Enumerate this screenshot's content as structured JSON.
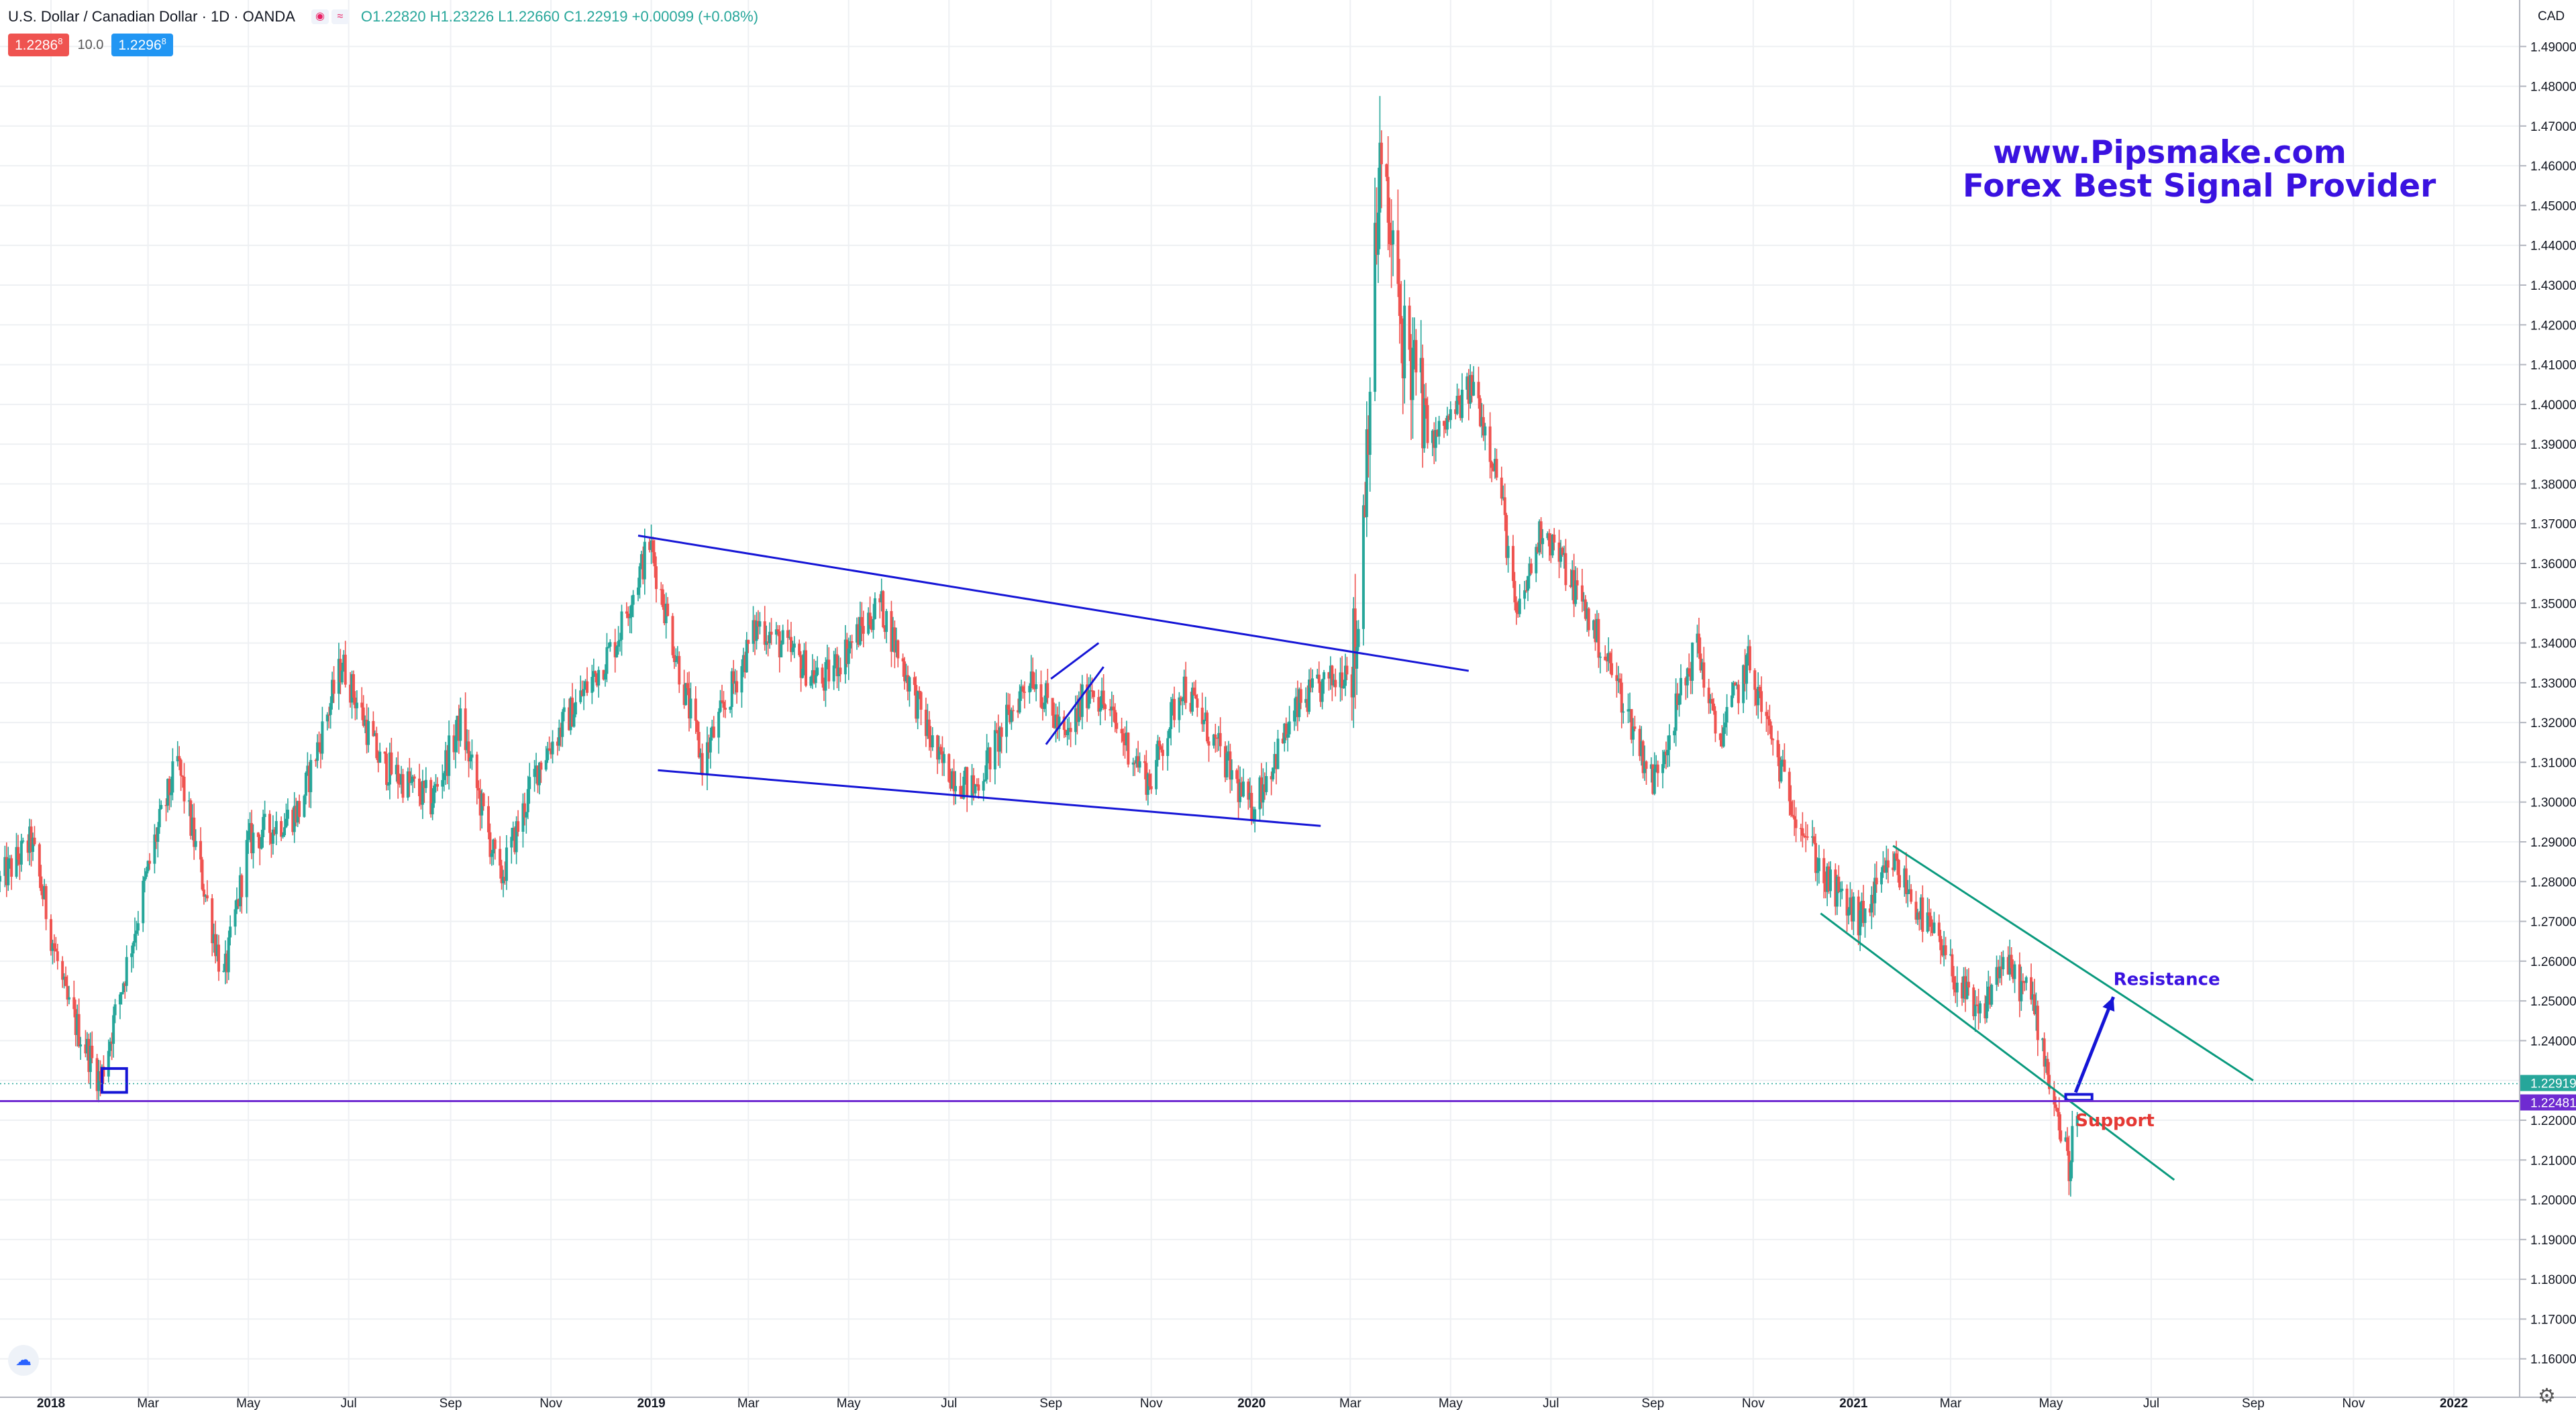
{
  "header": {
    "symbol": "U.S. Dollar / Canadian Dollar · 1D · OANDA",
    "open": "O1.22820",
    "high": "H1.23226",
    "low": "L1.22660",
    "close": "C1.22919",
    "change": "+0.00099 (+0.08%)",
    "icons": [
      "eye-icon",
      "compare-icon"
    ]
  },
  "quote": {
    "sell": "1.2286",
    "sell_sup": "8",
    "spread": "10.0",
    "buy": "1.2296",
    "buy_sup": "8"
  },
  "branding": {
    "line1": "www.Pipsmake.com",
    "line2": "Forex Best Signal Provider"
  },
  "colors": {
    "up": "#26a69a",
    "down": "#ef5350",
    "trendline": "#1515d6",
    "channel": "#0a9a7e",
    "support_line": "#6f2bd1",
    "annotation_resistance": "#3a12e0",
    "annotation_support": "#e53935"
  },
  "chart_data": {
    "type": "candlestick",
    "instrument": "USDCAD",
    "timeframe": "1D",
    "currency_label": "CAD",
    "x_range": [
      "2017-12-01",
      "2022-02-10"
    ],
    "ylim": [
      1.15,
      1.5
    ],
    "y_ticks": [
      "1.16000",
      "1.17000",
      "1.18000",
      "1.19000",
      "1.20000",
      "1.21000",
      "1.22000",
      "1.23000",
      "1.24000",
      "1.25000",
      "1.26000",
      "1.27000",
      "1.28000",
      "1.29000",
      "1.30000",
      "1.31000",
      "1.32000",
      "1.33000",
      "1.34000",
      "1.35000",
      "1.36000",
      "1.37000",
      "1.38000",
      "1.39000",
      "1.40000",
      "1.41000",
      "1.42000",
      "1.43000",
      "1.44000",
      "1.45000",
      "1.46000",
      "1.47000",
      "1.48000",
      "1.49000"
    ],
    "x_ticks": [
      {
        "date": "2018-01-01",
        "label": "2018",
        "bold": true
      },
      {
        "date": "2018-03-01",
        "label": "Mar"
      },
      {
        "date": "2018-05-01",
        "label": "May"
      },
      {
        "date": "2018-07-01",
        "label": "Jul"
      },
      {
        "date": "2018-09-01",
        "label": "Sep"
      },
      {
        "date": "2018-11-01",
        "label": "Nov"
      },
      {
        "date": "2019-01-01",
        "label": "2019",
        "bold": true
      },
      {
        "date": "2019-03-01",
        "label": "Mar"
      },
      {
        "date": "2019-05-01",
        "label": "May"
      },
      {
        "date": "2019-07-01",
        "label": "Jul"
      },
      {
        "date": "2019-09-01",
        "label": "Sep"
      },
      {
        "date": "2019-11-01",
        "label": "Nov"
      },
      {
        "date": "2020-01-01",
        "label": "2020",
        "bold": true
      },
      {
        "date": "2020-03-01",
        "label": "Mar"
      },
      {
        "date": "2020-05-01",
        "label": "May"
      },
      {
        "date": "2020-07-01",
        "label": "Jul"
      },
      {
        "date": "2020-09-01",
        "label": "Sep"
      },
      {
        "date": "2020-11-01",
        "label": "Nov"
      },
      {
        "date": "2021-01-01",
        "label": "2021",
        "bold": true
      },
      {
        "date": "2021-03-01",
        "label": "Mar"
      },
      {
        "date": "2021-05-01",
        "label": "May"
      },
      {
        "date": "2021-07-01",
        "label": "Jul"
      },
      {
        "date": "2021-09-01",
        "label": "Sep"
      },
      {
        "date": "2021-11-01",
        "label": "Nov"
      },
      {
        "date": "2022-01-01",
        "label": "2022",
        "bold": true
      }
    ],
    "price_path": [
      [
        "2017-12-01",
        1.28
      ],
      [
        "2017-12-20",
        1.29
      ],
      [
        "2018-01-10",
        1.25
      ],
      [
        "2018-01-31",
        1.23
      ],
      [
        "2018-03-05",
        1.29
      ],
      [
        "2018-03-19",
        1.31
      ],
      [
        "2018-04-16",
        1.255
      ],
      [
        "2018-05-01",
        1.29
      ],
      [
        "2018-06-01",
        1.298
      ],
      [
        "2018-06-27",
        1.335
      ],
      [
        "2018-07-20",
        1.31
      ],
      [
        "2018-08-20",
        1.3
      ],
      [
        "2018-09-07",
        1.32
      ],
      [
        "2018-10-01",
        1.28
      ],
      [
        "2018-10-25",
        1.31
      ],
      [
        "2018-12-10",
        1.34
      ],
      [
        "2018-12-31",
        1.365
      ],
      [
        "2019-01-20",
        1.33
      ],
      [
        "2019-02-01",
        1.31
      ],
      [
        "2019-03-07",
        1.345
      ],
      [
        "2019-04-15",
        1.33
      ],
      [
        "2019-05-20",
        1.35
      ],
      [
        "2019-06-25",
        1.31
      ],
      [
        "2019-07-16",
        1.303
      ],
      [
        "2019-08-20",
        1.333
      ],
      [
        "2019-09-10",
        1.315
      ],
      [
        "2019-09-25",
        1.33
      ],
      [
        "2019-10-31",
        1.305
      ],
      [
        "2019-11-20",
        1.33
      ],
      [
        "2019-12-31",
        1.298
      ],
      [
        "2020-01-31",
        1.325
      ],
      [
        "2020-02-24",
        1.332
      ],
      [
        "2020-03-05",
        1.34
      ],
      [
        "2020-03-19",
        1.46
      ],
      [
        "2020-04-01",
        1.42
      ],
      [
        "2020-04-20",
        1.39
      ],
      [
        "2020-05-15",
        1.405
      ],
      [
        "2020-05-31",
        1.38
      ],
      [
        "2020-06-10",
        1.345
      ],
      [
        "2020-06-26",
        1.37
      ],
      [
        "2020-07-20",
        1.35
      ],
      [
        "2020-08-10",
        1.33
      ],
      [
        "2020-09-01",
        1.305
      ],
      [
        "2020-09-28",
        1.34
      ],
      [
        "2020-10-10",
        1.315
      ],
      [
        "2020-10-29",
        1.335
      ],
      [
        "2020-11-20",
        1.305
      ],
      [
        "2020-12-15",
        1.28
      ],
      [
        "2021-01-05",
        1.27
      ],
      [
        "2021-01-25",
        1.285
      ],
      [
        "2021-02-20",
        1.265
      ],
      [
        "2021-03-18",
        1.245
      ],
      [
        "2021-04-01",
        1.26
      ],
      [
        "2021-04-20",
        1.25
      ],
      [
        "2021-05-12",
        1.208
      ],
      [
        "2021-05-18",
        1.2292
      ]
    ],
    "last_price": "1.22919",
    "support_level": "1.22481",
    "annotations": {
      "resistance_label": "Resistance",
      "support_label": "Support"
    },
    "drawings": [
      {
        "kind": "trendline",
        "from": [
          "2018-12-24",
          1.367
        ],
        "to": [
          "2020-05-12",
          1.333
        ]
      },
      {
        "kind": "trendline",
        "from": [
          "2019-01-05",
          1.308
        ],
        "to": [
          "2020-02-12",
          1.294
        ]
      },
      {
        "kind": "trendline",
        "from": [
          "2019-09-01",
          1.331
        ],
        "to": [
          "2019-09-30",
          1.34
        ]
      },
      {
        "kind": "trendline",
        "from": [
          "2019-08-29",
          1.3145
        ],
        "to": [
          "2019-10-03",
          1.334
        ]
      },
      {
        "kind": "channel",
        "from": [
          "2021-01-25",
          1.289
        ],
        "to": [
          "2021-09-01",
          1.23
        ]
      },
      {
        "kind": "channel",
        "from": [
          "2020-12-12",
          1.272
        ],
        "to": [
          "2021-07-15",
          1.205
        ]
      },
      {
        "kind": "rectangle",
        "from": [
          "2018-02-01",
          1.233
        ],
        "to": [
          "2018-02-16",
          1.227
        ]
      },
      {
        "kind": "rectangle",
        "from": [
          "2021-05-10",
          1.2265
        ],
        "to": [
          "2021-05-26",
          1.225
        ]
      },
      {
        "kind": "arrow",
        "from": [
          "2021-05-16",
          1.227
        ],
        "to": [
          "2021-06-08",
          1.251
        ]
      }
    ]
  }
}
